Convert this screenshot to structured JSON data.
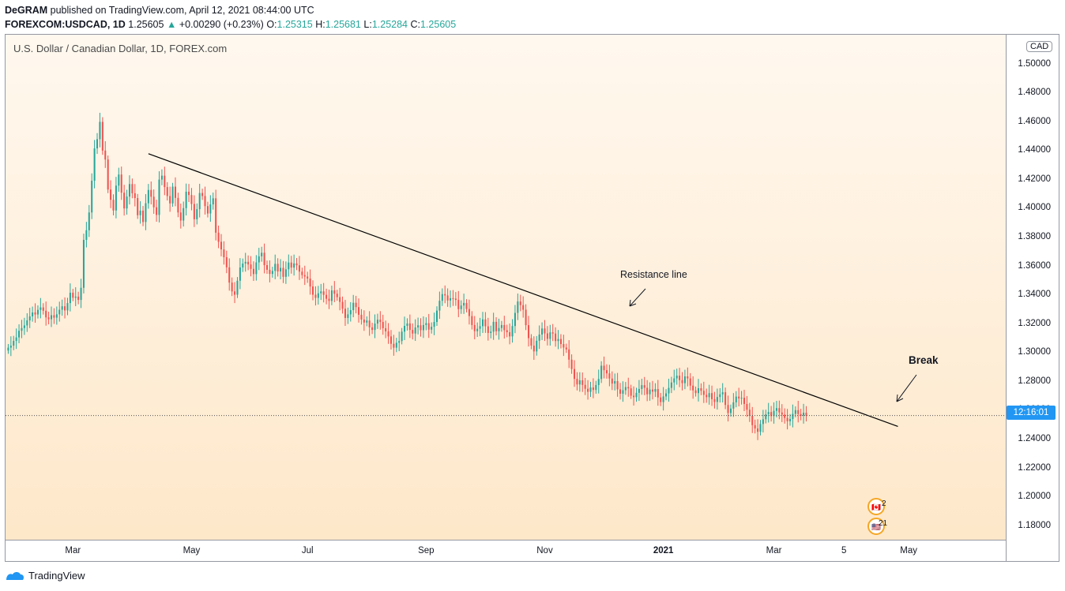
{
  "header": {
    "line1_author": "DeGRAM",
    "line1_rest": "published on TradingView.com, April 12, 2021 08:44:00 UTC",
    "symbol": "FOREXCOM:USDCAD, 1D",
    "last": "1.25605",
    "change_arrow": "▲",
    "change": "+0.00290 (+0.23%)",
    "o_label": "O:",
    "o_value": "1.25315",
    "h_label": "H:",
    "h_value": "1.25681",
    "l_label": "L:",
    "l_value": "1.25284",
    "c_label": "C:",
    "c_value": "1.25605"
  },
  "colors": {
    "up": "#26a69a",
    "down": "#ef5350",
    "trendline": "#000000",
    "price_line": "#2196f3",
    "text": "#131722"
  },
  "footer": {
    "brand": "TradingView"
  },
  "events": {
    "upper_count": "2",
    "lower_count": "21"
  },
  "chart_data": {
    "type": "candlestick",
    "title": "U.S. Dollar / Canadian Dollar, 1D, FOREX.com",
    "currency_badge": "CAD",
    "current_price_label": "12:16:01",
    "current_price": 1.25605,
    "ylim": [
      1.17,
      1.52
    ],
    "y_ticks": [
      "1.18000",
      "1.20000",
      "1.22000",
      "1.24000",
      "1.26000",
      "1.28000",
      "1.30000",
      "1.32000",
      "1.34000",
      "1.36000",
      "1.38000",
      "1.40000",
      "1.42000",
      "1.44000",
      "1.46000",
      "1.48000",
      "1.50000"
    ],
    "x_ticks": [
      {
        "label": "Mar",
        "idx": 24
      },
      {
        "label": "May",
        "idx": 68
      },
      {
        "label": "Jul",
        "idx": 111
      },
      {
        "label": "Sep",
        "idx": 155
      },
      {
        "label": "Nov",
        "idx": 199
      },
      {
        "label": "2021",
        "idx": 243,
        "bold": true
      },
      {
        "label": "Mar",
        "idx": 284
      },
      {
        "label": "5",
        "idx": 310
      },
      {
        "label": "May",
        "idx": 334
      }
    ],
    "xlim": [
      -1,
      370
    ],
    "trendline": {
      "label": "Resistance line",
      "from": {
        "idx": 52,
        "price": 1.4375
      },
      "to": {
        "idx": 330,
        "price": 1.2485
      }
    },
    "break_label": "Break",
    "closes": [
      1.3031,
      1.3045,
      1.3078,
      1.3102,
      1.3148,
      1.3167,
      1.3185,
      1.322,
      1.3248,
      1.3275,
      1.3261,
      1.3293,
      1.331,
      1.3287,
      1.3241,
      1.3228,
      1.3256,
      1.3239,
      1.3262,
      1.3294,
      1.3318,
      1.3289,
      1.334,
      1.3412,
      1.3377,
      1.3385,
      1.3362,
      1.3446,
      1.3778,
      1.3845,
      1.3968,
      1.4188,
      1.4412,
      1.4476,
      1.4596,
      1.4397,
      1.4335,
      1.4127,
      1.4056,
      1.3982,
      1.4154,
      1.4231,
      1.4105,
      1.3996,
      1.4078,
      1.4165,
      1.4101,
      1.4068,
      1.3949,
      1.3981,
      1.3902,
      1.4032,
      1.4124,
      1.4077,
      1.4004,
      1.3951,
      1.4196,
      1.4223,
      1.4144,
      1.4082,
      1.4031,
      1.4147,
      1.4069,
      1.3968,
      1.3912,
      1.3998,
      1.4112,
      1.4089,
      1.4027,
      1.3921,
      1.3991,
      1.4103,
      1.4082,
      1.4012,
      1.3961,
      1.4024,
      1.4066,
      1.3828,
      1.3765,
      1.3712,
      1.3658,
      1.3588,
      1.3482,
      1.3421,
      1.3398,
      1.3495,
      1.3587,
      1.3614,
      1.3626,
      1.3608,
      1.3577,
      1.3541,
      1.3622,
      1.3664,
      1.3689,
      1.3603,
      1.3571,
      1.3542,
      1.3563,
      1.3612,
      1.3559,
      1.3584,
      1.3522,
      1.3574,
      1.3621,
      1.3586,
      1.3615,
      1.3602,
      1.3558,
      1.3534,
      1.3524,
      1.351,
      1.3455,
      1.3398,
      1.3376,
      1.3408,
      1.3421,
      1.3397,
      1.337,
      1.3355,
      1.3428,
      1.3405,
      1.3381,
      1.3348,
      1.3301,
      1.3237,
      1.3262,
      1.3291,
      1.3342,
      1.3312,
      1.3259,
      1.3226,
      1.3205,
      1.3219,
      1.3172,
      1.3154,
      1.3198,
      1.3225,
      1.3209,
      1.3166,
      1.3144,
      1.3109,
      1.3058,
      1.3031,
      1.3065,
      1.3077,
      1.3142,
      1.3182,
      1.3199,
      1.3154,
      1.3129,
      1.3171,
      1.3186,
      1.3152,
      1.3188,
      1.3201,
      1.3156,
      1.3176,
      1.3209,
      1.3288,
      1.3356,
      1.3402,
      1.3393,
      1.3358,
      1.3374,
      1.3371,
      1.3362,
      1.3298,
      1.3323,
      1.3341,
      1.3299,
      1.325,
      1.3188,
      1.3145,
      1.3162,
      1.318,
      1.3227,
      1.3179,
      1.3133,
      1.3142,
      1.321,
      1.3145,
      1.3167,
      1.3188,
      1.3152,
      1.3138,
      1.3109,
      1.3181,
      1.3272,
      1.3351,
      1.3326,
      1.3294,
      1.3187,
      1.3097,
      1.3045,
      1.3005,
      1.3079,
      1.3122,
      1.3164,
      1.313,
      1.3092,
      1.3137,
      1.3129,
      1.3077,
      1.3091,
      1.3056,
      1.3032,
      1.3019,
      1.2948,
      1.2883,
      1.2815,
      1.2776,
      1.2805,
      1.2773,
      1.2746,
      1.2725,
      1.2755,
      1.2738,
      1.2772,
      1.2814,
      1.2906,
      1.2875,
      1.2853,
      1.2817,
      1.2782,
      1.2799,
      1.2742,
      1.2712,
      1.2736,
      1.2758,
      1.2749,
      1.2698,
      1.2688,
      1.2718,
      1.2745,
      1.2771,
      1.2753,
      1.2708,
      1.2741,
      1.2726,
      1.2744,
      1.2686,
      1.2654,
      1.2693,
      1.2714,
      1.2752,
      1.279,
      1.2818,
      1.2837,
      1.2806,
      1.2785,
      1.2832,
      1.2818,
      1.2768,
      1.2735,
      1.2716,
      1.275,
      1.2732,
      1.2704,
      1.2688,
      1.2716,
      1.2674,
      1.2655,
      1.2689,
      1.2708,
      1.2722,
      1.2634,
      1.2578,
      1.2609,
      1.2652,
      1.2692,
      1.2679,
      1.2684,
      1.2641,
      1.2601,
      1.2559,
      1.2494,
      1.2471,
      1.2448,
      1.2502,
      1.2535,
      1.2569,
      1.2585,
      1.2557,
      1.2593,
      1.2612,
      1.2582,
      1.2567,
      1.2544,
      1.2521,
      1.2537,
      1.2572,
      1.2598,
      1.2571,
      1.256,
      1.258,
      1.2561
    ]
  }
}
